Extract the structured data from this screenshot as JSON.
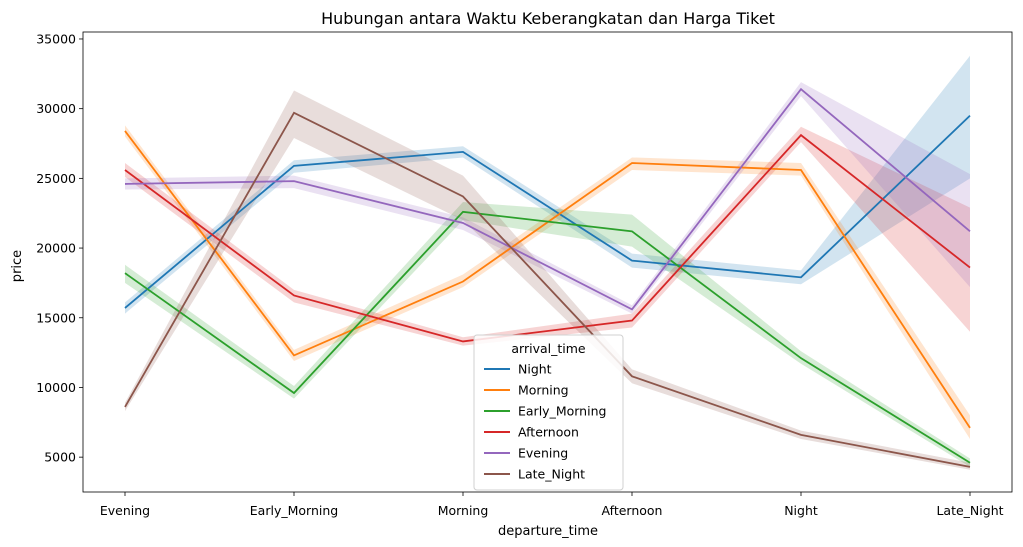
{
  "chart_data": {
    "type": "line",
    "title": "Hubungan antara Waktu Keberangkatan dan Harga Tiket",
    "xlabel": "departure_time",
    "ylabel": "price",
    "categories": [
      "Evening",
      "Early_Morning",
      "Morning",
      "Afternoon",
      "Night",
      "Late_Night"
    ],
    "ylim": [
      2500,
      35500
    ],
    "yticks": [
      5000,
      10000,
      15000,
      20000,
      25000,
      30000,
      35000
    ],
    "grid": false,
    "legend": {
      "title": "arrival_time",
      "placement": "bottom-center"
    },
    "series": [
      {
        "name": "Night",
        "color": "#1f77b4",
        "values": [
          15700,
          25900,
          26900,
          19100,
          17900,
          29500
        ],
        "ci_low": [
          15300,
          25400,
          26500,
          18600,
          17400,
          25000
        ],
        "ci_high": [
          16100,
          26300,
          27300,
          19600,
          18400,
          33800
        ]
      },
      {
        "name": "Morning",
        "color": "#ff7f0e",
        "values": [
          28400,
          12300,
          17600,
          26100,
          25600,
          7100
        ],
        "ci_low": [
          28000,
          11900,
          17200,
          25600,
          25200,
          6300
        ],
        "ci_high": [
          28800,
          12700,
          18100,
          26500,
          26100,
          8000
        ]
      },
      {
        "name": "Early_Morning",
        "color": "#2ca02c",
        "values": [
          18200,
          9600,
          22600,
          21200,
          12100,
          4600
        ],
        "ci_low": [
          17500,
          9200,
          22000,
          20100,
          11700,
          4300
        ],
        "ci_high": [
          18800,
          10100,
          23300,
          22400,
          12600,
          4900
        ]
      },
      {
        "name": "Afternoon",
        "color": "#d62728",
        "values": [
          25600,
          16600,
          13300,
          14800,
          28100,
          18600
        ],
        "ci_low": [
          25100,
          16100,
          13000,
          14300,
          27600,
          14000
        ],
        "ci_high": [
          26100,
          17000,
          13600,
          15300,
          28700,
          22900
        ]
      },
      {
        "name": "Evening",
        "color": "#9467bd",
        "values": [
          24600,
          24800,
          21800,
          15600,
          31400,
          21200
        ],
        "ci_low": [
          24200,
          24300,
          21300,
          15300,
          30900,
          17200
        ],
        "ci_high": [
          25000,
          25200,
          22200,
          15900,
          31900,
          25300
        ]
      },
      {
        "name": "Late_Night",
        "color": "#8c564b",
        "values": [
          8600,
          29700,
          23700,
          10800,
          6600,
          4300
        ],
        "ci_low": [
          8300,
          27900,
          22000,
          10300,
          6300,
          4100
        ],
        "ci_high": [
          8900,
          31300,
          25200,
          11300,
          6900,
          4600
        ]
      }
    ]
  }
}
